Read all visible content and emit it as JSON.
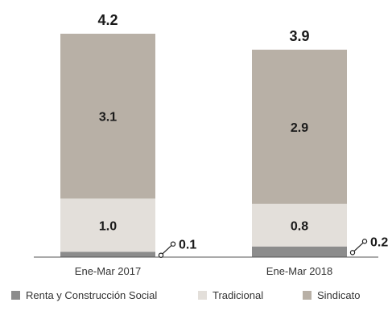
{
  "chart_data": {
    "type": "bar",
    "stacked": true,
    "categories": [
      "Ene-Mar 2017",
      "Ene-Mar 2018"
    ],
    "totals": [
      "4.2",
      "3.9"
    ],
    "series": [
      {
        "name": "Renta y Construcción Social",
        "color": "#8c8c8c",
        "values": [
          0.1,
          0.2
        ],
        "labels": [
          "0.1",
          "0.2"
        ],
        "label_style": "callout"
      },
      {
        "name": "Tradicional",
        "color": "#e3dfda",
        "values": [
          1.0,
          0.8
        ],
        "labels": [
          "1.0",
          "0.8"
        ],
        "label_style": "inside"
      },
      {
        "name": "Sindicato",
        "color": "#b8b0a6",
        "values": [
          3.1,
          2.9
        ],
        "labels": [
          "3.1",
          "2.9"
        ],
        "label_style": "inside"
      }
    ],
    "legend_position": "bottom",
    "grid": false
  }
}
